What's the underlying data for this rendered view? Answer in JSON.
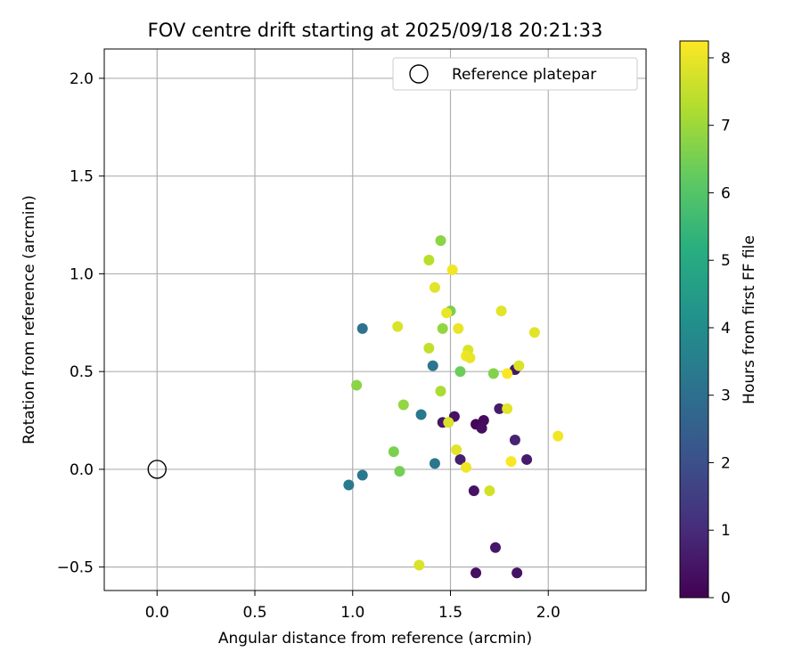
{
  "chart_data": {
    "type": "scatter",
    "title": "FOV centre drift starting at 2025/09/18 20:21:33",
    "xlabel": "Angular distance from reference (arcmin)",
    "ylabel": "Rotation from reference (arcmin)",
    "xlim": [
      -0.27,
      2.5
    ],
    "ylim": [
      -0.62,
      2.15
    ],
    "xticks": [
      0.0,
      0.5,
      1.0,
      1.5,
      2.0
    ],
    "yticks": [
      -0.5,
      0.0,
      0.5,
      1.0,
      1.5,
      2.0
    ],
    "xtick_labels": [
      "0.0",
      "0.5",
      "1.0",
      "1.5",
      "2.0"
    ],
    "ytick_labels": [
      "−0.5",
      "0.0",
      "0.5",
      "1.0",
      "1.5",
      "2.0"
    ],
    "grid": true,
    "legend": {
      "position": "top-right",
      "entries": [
        "Reference platepar"
      ]
    },
    "reference_point": {
      "x": 0.0,
      "y": 0.0,
      "label": "Reference platepar"
    },
    "colorbar": {
      "label": "Hours from first FF file",
      "range": [
        0,
        8.25
      ],
      "ticks": [
        0,
        1,
        2,
        3,
        4,
        5,
        6,
        7,
        8
      ],
      "tick_labels": [
        "0",
        "1",
        "2",
        "3",
        "4",
        "5",
        "6",
        "7",
        "8"
      ],
      "colormap": "viridis"
    },
    "points": [
      {
        "x": 1.63,
        "y": 0.23,
        "h": 0.1
      },
      {
        "x": 1.67,
        "y": 0.25,
        "h": 0.2
      },
      {
        "x": 1.66,
        "y": 0.21,
        "h": 0.3
      },
      {
        "x": 1.52,
        "y": 0.27,
        "h": 0.4
      },
      {
        "x": 1.46,
        "y": 0.24,
        "h": 0.5
      },
      {
        "x": 1.75,
        "y": 0.31,
        "h": 0.6
      },
      {
        "x": 1.55,
        "y": 0.05,
        "h": 0.7
      },
      {
        "x": 1.83,
        "y": 0.15,
        "h": 0.8
      },
      {
        "x": 1.89,
        "y": 0.05,
        "h": 0.6
      },
      {
        "x": 1.83,
        "y": 0.51,
        "h": 0.5
      },
      {
        "x": 1.62,
        "y": -0.11,
        "h": 0.4
      },
      {
        "x": 1.73,
        "y": -0.4,
        "h": 0.5
      },
      {
        "x": 1.63,
        "y": -0.53,
        "h": 0.3
      },
      {
        "x": 1.84,
        "y": -0.53,
        "h": 0.4
      },
      {
        "x": 1.05,
        "y": 0.72,
        "h": 3.1
      },
      {
        "x": 1.41,
        "y": 0.53,
        "h": 3.2
      },
      {
        "x": 1.35,
        "y": 0.28,
        "h": 3.3
      },
      {
        "x": 1.42,
        "y": 0.03,
        "h": 3.2
      },
      {
        "x": 0.98,
        "y": -0.08,
        "h": 3.4
      },
      {
        "x": 1.05,
        "y": -0.03,
        "h": 3.3
      },
      {
        "x": 1.45,
        "y": 1.17,
        "h": 6.8
      },
      {
        "x": 1.39,
        "y": 1.07,
        "h": 7.4
      },
      {
        "x": 1.5,
        "y": 0.81,
        "h": 6.6
      },
      {
        "x": 1.46,
        "y": 0.72,
        "h": 6.9
      },
      {
        "x": 1.39,
        "y": 0.62,
        "h": 7.5
      },
      {
        "x": 1.55,
        "y": 0.5,
        "h": 6.4
      },
      {
        "x": 1.72,
        "y": 0.49,
        "h": 6.7
      },
      {
        "x": 1.02,
        "y": 0.43,
        "h": 6.8
      },
      {
        "x": 1.45,
        "y": 0.4,
        "h": 7.2
      },
      {
        "x": 1.26,
        "y": 0.33,
        "h": 6.9
      },
      {
        "x": 1.21,
        "y": 0.09,
        "h": 6.6
      },
      {
        "x": 1.24,
        "y": -0.01,
        "h": 6.5
      },
      {
        "x": 1.51,
        "y": 1.02,
        "h": 8.1
      },
      {
        "x": 1.42,
        "y": 0.93,
        "h": 7.9
      },
      {
        "x": 1.48,
        "y": 0.8,
        "h": 8.0
      },
      {
        "x": 1.76,
        "y": 0.81,
        "h": 7.9
      },
      {
        "x": 1.23,
        "y": 0.73,
        "h": 7.8
      },
      {
        "x": 1.54,
        "y": 0.72,
        "h": 8.0
      },
      {
        "x": 1.93,
        "y": 0.7,
        "h": 7.9
      },
      {
        "x": 1.59,
        "y": 0.61,
        "h": 7.8
      },
      {
        "x": 1.58,
        "y": 0.58,
        "h": 8.1
      },
      {
        "x": 1.6,
        "y": 0.57,
        "h": 8.0
      },
      {
        "x": 1.85,
        "y": 0.53,
        "h": 7.8
      },
      {
        "x": 1.79,
        "y": 0.49,
        "h": 8.2
      },
      {
        "x": 1.79,
        "y": 0.31,
        "h": 7.9
      },
      {
        "x": 1.49,
        "y": 0.24,
        "h": 7.8
      },
      {
        "x": 2.05,
        "y": 0.17,
        "h": 8.1
      },
      {
        "x": 1.53,
        "y": 0.1,
        "h": 7.9
      },
      {
        "x": 1.81,
        "y": 0.04,
        "h": 8.2
      },
      {
        "x": 1.58,
        "y": 0.01,
        "h": 8.1
      },
      {
        "x": 1.7,
        "y": -0.11,
        "h": 7.7
      },
      {
        "x": 1.34,
        "y": -0.49,
        "h": 7.8
      }
    ]
  }
}
